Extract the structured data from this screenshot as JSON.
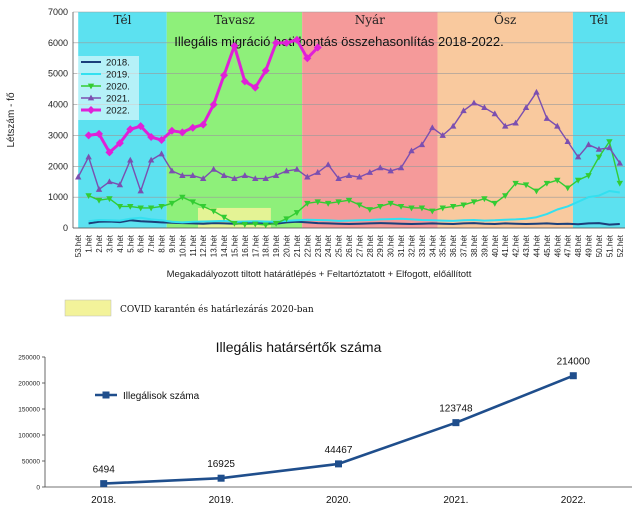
{
  "chart_data": [
    {
      "type": "line",
      "title": "Illegális migráció heti bontás összehasonlítás 2018-2022.",
      "xlabel": "Megakadályozott tiltott határátlépés + Feltartóztatott + Elfogott, előállított",
      "ylabel": "Létszám - fő",
      "ylim": [
        0,
        7000
      ],
      "yticks": [
        0,
        1000,
        2000,
        3000,
        4000,
        5000,
        6000,
        7000
      ],
      "grid": true,
      "legend_position": "top-left",
      "categories": [
        "53.hét",
        "1.hét",
        "2.hét",
        "3.hét",
        "4.hét",
        "5.hét",
        "6.hét",
        "7.hét",
        "8.hét",
        "9.hét",
        "10.hét",
        "11.hét",
        "12.hét",
        "13.hét",
        "14.hét",
        "15.hét",
        "16.hét",
        "17.hét",
        "18.hét",
        "19.hét",
        "20.hét",
        "21.hét",
        "22.hét",
        "23.hét",
        "24.hét",
        "25.hét",
        "26.hét",
        "27.hét",
        "28.hét",
        "29.hét",
        "30.hét",
        "31.hét",
        "32.hét",
        "33.hét",
        "34.hét",
        "35.hét",
        "36.hét",
        "37.hét",
        "38.hét",
        "39.hét",
        "40.hét",
        "41.hét",
        "42.hét",
        "43.hét",
        "44.hét",
        "45.hét",
        "46.hét",
        "47.hét",
        "48.hét",
        "49.hét",
        "50.hét",
        "51.hét",
        "52.hét"
      ],
      "seasons": [
        {
          "label": "Tél",
          "from": 0,
          "to": 8.5,
          "color": "#5ce1f0"
        },
        {
          "label": "Tavasz",
          "from": 8.5,
          "to": 21.5,
          "color": "#8ef07a"
        },
        {
          "label": "Nyár",
          "from": 21.5,
          "to": 34.5,
          "color": "#f59a9a"
        },
        {
          "label": "Ősz",
          "from": 34.5,
          "to": 47.5,
          "color": "#f9c99e"
        },
        {
          "label": "Tél",
          "from": 47.5,
          "to": 52.5,
          "color": "#5ce1f0"
        }
      ],
      "covid_band": {
        "label": "COVID karantén és határlezárás 2020-ban",
        "from": 11.5,
        "to": 18.5,
        "color": "#f3f39a",
        "ymax": 650
      },
      "series": [
        {
          "name": "2018.",
          "color": "#1b3f7a",
          "marker": "none",
          "values": [
            null,
            150,
            200,
            210,
            190,
            250,
            220,
            200,
            180,
            170,
            160,
            150,
            140,
            160,
            150,
            140,
            150,
            160,
            150,
            140,
            180,
            200,
            180,
            160,
            150,
            140,
            130,
            140,
            150,
            160,
            150,
            140,
            130,
            140,
            150,
            140,
            130,
            150,
            160,
            140,
            130,
            150,
            140,
            130,
            140,
            150,
            130,
            140,
            120,
            150,
            160,
            110,
            130
          ]
        },
        {
          "name": "2019.",
          "color": "#33e0f0",
          "marker": "none",
          "values": [
            null,
            220,
            260,
            250,
            240,
            300,
            330,
            280,
            250,
            200,
            180,
            200,
            210,
            220,
            230,
            200,
            210,
            220,
            210,
            200,
            230,
            250,
            270,
            260,
            250,
            230,
            240,
            250,
            260,
            280,
            290,
            300,
            280,
            260,
            250,
            240,
            230,
            250,
            260,
            240,
            250,
            270,
            280,
            300,
            350,
            450,
            600,
            700,
            850,
            1000,
            1050,
            1200,
            1150
          ]
        },
        {
          "name": "2020.",
          "color": "#33cc33",
          "marker": "triangle-down",
          "values": [
            null,
            1050,
            900,
            950,
            700,
            700,
            650,
            650,
            700,
            800,
            1000,
            850,
            700,
            550,
            350,
            150,
            120,
            130,
            100,
            150,
            300,
            500,
            800,
            850,
            800,
            850,
            900,
            750,
            600,
            700,
            800,
            700,
            650,
            650,
            550,
            650,
            700,
            750,
            850,
            950,
            800,
            1050,
            1450,
            1400,
            1200,
            1450,
            1550,
            1300,
            1550,
            1700,
            2300,
            2800,
            1450
          ]
        },
        {
          "name": "2021.",
          "color": "#7b4fb0",
          "marker": "triangle",
          "values": [
            1650,
            2300,
            1250,
            1500,
            1400,
            2200,
            1200,
            2200,
            2400,
            1850,
            1700,
            1700,
            1600,
            1900,
            1700,
            1600,
            1700,
            1600,
            1600,
            1700,
            1850,
            1900,
            1650,
            1800,
            2050,
            1600,
            1700,
            1650,
            1800,
            1950,
            1850,
            1950,
            2500,
            2700,
            3250,
            3000,
            3300,
            3800,
            4050,
            3900,
            3700,
            3300,
            3400,
            3900,
            4400,
            3550,
            3300,
            2800,
            2300,
            2700,
            2550,
            2600,
            2100
          ]
        },
        {
          "name": "2022.",
          "color": "#e020d8",
          "marker": "diamond",
          "values": [
            null,
            3000,
            3050,
            2450,
            2750,
            3200,
            3300,
            2950,
            2850,
            3150,
            3100,
            3250,
            3350,
            4000,
            4950,
            5900,
            4750,
            4550,
            5100,
            6000,
            6000,
            6100,
            5500,
            5850,
            null,
            null,
            null,
            null,
            null,
            null,
            null,
            null,
            null,
            null,
            null,
            null,
            null,
            null,
            null,
            null,
            null,
            null,
            null,
            null,
            null,
            null,
            null,
            null,
            null,
            null,
            null,
            null,
            null
          ]
        }
      ]
    },
    {
      "type": "line",
      "title": "Illegális határsértők száma",
      "categories": [
        "2018.",
        "2019.",
        "2020.",
        "2021.",
        "2022."
      ],
      "series": [
        {
          "name": "Illegálisok száma",
          "color": "#1f4e8c",
          "values": [
            6494,
            16925,
            44467,
            123748,
            214000
          ]
        }
      ],
      "data_labels": [
        "6494",
        "16925",
        "44467",
        "123748",
        "214000"
      ],
      "ylim": [
        0,
        250000
      ],
      "yticks": [
        0,
        50000,
        100000,
        150000,
        200000,
        250000
      ],
      "grid": false,
      "legend_position": "top-left"
    }
  ]
}
